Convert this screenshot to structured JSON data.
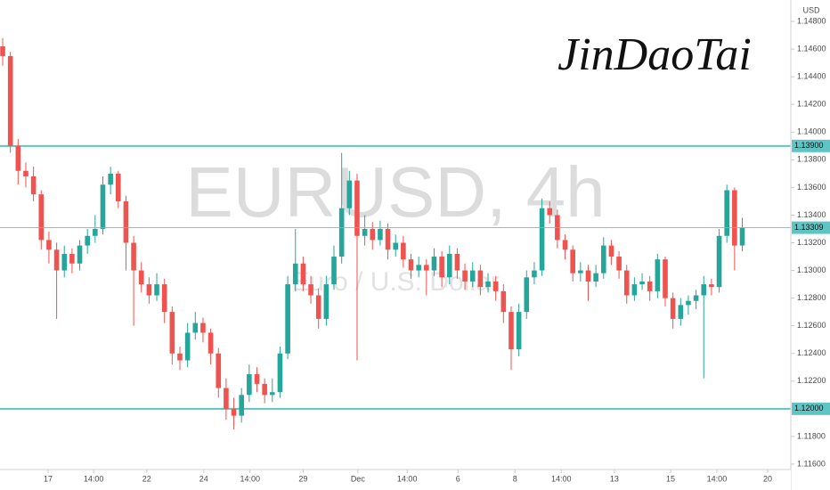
{
  "chart_data": {
    "type": "candlestick",
    "title": "EURUSD, 4h",
    "subtitle": "Euro / U.S. Dollar",
    "currency": "USD",
    "signature": "JinDaoTai",
    "up_color": "#26a69a",
    "down_color": "#ef5350",
    "level_color": "#5fc4c4",
    "xlim": [
      -0.35,
      102.3
    ],
    "ylim": [
      1.11561,
      1.14955
    ],
    "xticks": [
      {
        "value": 5.9,
        "label": "17"
      },
      {
        "value": 11.8,
        "label": "14:00"
      },
      {
        "value": 18.7,
        "label": "22"
      },
      {
        "value": 26.1,
        "label": "24"
      },
      {
        "value": 32.1,
        "label": "14:00"
      },
      {
        "value": 39,
        "label": "29"
      },
      {
        "value": 46.1,
        "label": "Dec"
      },
      {
        "value": 52.5,
        "label": "14:00"
      },
      {
        "value": 59.1,
        "label": "6"
      },
      {
        "value": 66.5,
        "label": "8"
      },
      {
        "value": 72.5,
        "label": "14:00"
      },
      {
        "value": 79.4,
        "label": "13"
      },
      {
        "value": 86.7,
        "label": "15"
      },
      {
        "value": 92.7,
        "label": "14:00"
      },
      {
        "value": 99.3,
        "label": "20"
      }
    ],
    "yticks": [
      {
        "value": 1.148,
        "label": "1.14800"
      },
      {
        "value": 1.146,
        "label": "1.14600"
      },
      {
        "value": 1.144,
        "label": "1.14400"
      },
      {
        "value": 1.142,
        "label": "1.14200"
      },
      {
        "value": 1.14,
        "label": "1.14000"
      },
      {
        "value": 1.138,
        "label": "1.13800"
      },
      {
        "value": 1.136,
        "label": "1.13600"
      },
      {
        "value": 1.134,
        "label": "1.13400"
      },
      {
        "value": 1.132,
        "label": "1.13200"
      },
      {
        "value": 1.13,
        "label": "1.13000"
      },
      {
        "value": 1.128,
        "label": "1.12800"
      },
      {
        "value": 1.126,
        "label": "1.12600"
      },
      {
        "value": 1.124,
        "label": "1.12400"
      },
      {
        "value": 1.122,
        "label": "1.12200"
      },
      {
        "value": 1.118,
        "label": "1.11800"
      },
      {
        "value": 1.116,
        "label": "1.11600"
      }
    ],
    "levels": [
      {
        "value": 1.139,
        "label": "1.13900"
      },
      {
        "value": 1.12,
        "label": "1.12000"
      }
    ],
    "last_price": {
      "value": 1.13309,
      "label": "1.13309"
    },
    "candles": [
      [
        1.1462,
        1.1468,
        1.1448,
        1.1455
      ],
      [
        1.1455,
        1.1458,
        1.1385,
        1.139
      ],
      [
        1.139,
        1.1395,
        1.1362,
        1.1372
      ],
      [
        1.1372,
        1.1378,
        1.136,
        1.1368
      ],
      [
        1.1368,
        1.1375,
        1.135,
        1.1355
      ],
      [
        1.1355,
        1.1358,
        1.1315,
        1.1322
      ],
      [
        1.1322,
        1.1328,
        1.1305,
        1.1315
      ],
      [
        1.1315,
        1.132,
        1.1265,
        1.13
      ],
      [
        1.13,
        1.1318,
        1.1295,
        1.1312
      ],
      [
        1.1312,
        1.1316,
        1.1298,
        1.1305
      ],
      [
        1.1305,
        1.1322,
        1.13,
        1.1318
      ],
      [
        1.1318,
        1.133,
        1.1312,
        1.1325
      ],
      [
        1.1325,
        1.134,
        1.132,
        1.133
      ],
      [
        1.133,
        1.1368,
        1.1326,
        1.1362
      ],
      [
        1.1362,
        1.1375,
        1.1355,
        1.137
      ],
      [
        1.137,
        1.1372,
        1.1345,
        1.135
      ],
      [
        1.135,
        1.1354,
        1.13,
        1.132
      ],
      [
        1.132,
        1.1325,
        1.126,
        1.13
      ],
      [
        1.13,
        1.1306,
        1.1284,
        1.129
      ],
      [
        1.129,
        1.1295,
        1.1276,
        1.1282
      ],
      [
        1.1282,
        1.1298,
        1.1278,
        1.129
      ],
      [
        1.129,
        1.1294,
        1.1262,
        1.127
      ],
      [
        1.127,
        1.1274,
        1.1232,
        1.124
      ],
      [
        1.124,
        1.1245,
        1.1228,
        1.1235
      ],
      [
        1.1235,
        1.1262,
        1.123,
        1.1255
      ],
      [
        1.1255,
        1.127,
        1.125,
        1.1262
      ],
      [
        1.1262,
        1.1266,
        1.1248,
        1.1255
      ],
      [
        1.1255,
        1.1258,
        1.1232,
        1.124
      ],
      [
        1.124,
        1.1244,
        1.1208,
        1.1215
      ],
      [
        1.1215,
        1.1222,
        1.1192,
        1.12
      ],
      [
        1.12,
        1.1208,
        1.1185,
        1.1195
      ],
      [
        1.1195,
        1.1215,
        1.119,
        1.121
      ],
      [
        1.121,
        1.1232,
        1.1205,
        1.1225
      ],
      [
        1.1225,
        1.123,
        1.1212,
        1.1218
      ],
      [
        1.1218,
        1.1222,
        1.1204,
        1.121
      ],
      [
        1.121,
        1.1222,
        1.1205,
        1.1212
      ],
      [
        1.1212,
        1.1245,
        1.1208,
        1.124
      ],
      [
        1.124,
        1.1296,
        1.1236,
        1.129
      ],
      [
        1.129,
        1.133,
        1.1285,
        1.1305
      ],
      [
        1.1305,
        1.131,
        1.1285,
        1.129
      ],
      [
        1.129,
        1.1296,
        1.1276,
        1.1282
      ],
      [
        1.1282,
        1.1287,
        1.1258,
        1.1265
      ],
      [
        1.1265,
        1.1296,
        1.126,
        1.129
      ],
      [
        1.129,
        1.1318,
        1.1286,
        1.131
      ],
      [
        1.131,
        1.1385,
        1.1305,
        1.1345
      ],
      [
        1.1345,
        1.1372,
        1.134,
        1.1365
      ],
      [
        1.1365,
        1.137,
        1.1235,
        1.1325
      ],
      [
        1.1325,
        1.134,
        1.1318,
        1.133
      ],
      [
        1.133,
        1.1335,
        1.1315,
        1.1322
      ],
      [
        1.1322,
        1.1336,
        1.1318,
        1.133
      ],
      [
        1.133,
        1.1334,
        1.1308,
        1.1315
      ],
      [
        1.1315,
        1.1326,
        1.131,
        1.132
      ],
      [
        1.132,
        1.1325,
        1.1302,
        1.1308
      ],
      [
        1.1308,
        1.1312,
        1.1294,
        1.13
      ],
      [
        1.13,
        1.131,
        1.1295,
        1.1304
      ],
      [
        1.1304,
        1.1308,
        1.1282,
        1.13
      ],
      [
        1.13,
        1.1316,
        1.1296,
        1.131
      ],
      [
        1.131,
        1.1314,
        1.1288,
        1.1295
      ],
      [
        1.1295,
        1.1318,
        1.129,
        1.1312
      ],
      [
        1.1312,
        1.1316,
        1.1294,
        1.13
      ],
      [
        1.13,
        1.1305,
        1.1286,
        1.1292
      ],
      [
        1.1292,
        1.1306,
        1.1288,
        1.13
      ],
      [
        1.13,
        1.1304,
        1.1282,
        1.1288
      ],
      [
        1.1288,
        1.1298,
        1.1284,
        1.1292
      ],
      [
        1.1292,
        1.1296,
        1.1278,
        1.1285
      ],
      [
        1.1285,
        1.129,
        1.1262,
        1.127
      ],
      [
        1.127,
        1.1274,
        1.1228,
        1.1243
      ],
      [
        1.1243,
        1.1276,
        1.1238,
        1.127
      ],
      [
        1.127,
        1.13,
        1.1265,
        1.1295
      ],
      [
        1.1295,
        1.1306,
        1.129,
        1.13
      ],
      [
        1.13,
        1.1352,
        1.1296,
        1.1345
      ],
      [
        1.1345,
        1.135,
        1.1334,
        1.134
      ],
      [
        1.134,
        1.1344,
        1.1316,
        1.1322
      ],
      [
        1.1322,
        1.1326,
        1.1308,
        1.1315
      ],
      [
        1.1315,
        1.1318,
        1.1292,
        1.1298
      ],
      [
        1.1298,
        1.1306,
        1.1292,
        1.13
      ],
      [
        1.13,
        1.1304,
        1.1278,
        1.1292
      ],
      [
        1.1292,
        1.1304,
        1.1288,
        1.1298
      ],
      [
        1.1298,
        1.1324,
        1.1294,
        1.1318
      ],
      [
        1.1318,
        1.1322,
        1.1304,
        1.131
      ],
      [
        1.131,
        1.1314,
        1.1294,
        1.13
      ],
      [
        1.13,
        1.1304,
        1.1276,
        1.1282
      ],
      [
        1.1282,
        1.1295,
        1.1278,
        1.129
      ],
      [
        1.129,
        1.1298,
        1.1286,
        1.1292
      ],
      [
        1.1292,
        1.1296,
        1.1278,
        1.1285
      ],
      [
        1.1285,
        1.1312,
        1.128,
        1.1308
      ],
      [
        1.1308,
        1.131,
        1.1274,
        1.128
      ],
      [
        1.128,
        1.1284,
        1.1258,
        1.1265
      ],
      [
        1.1265,
        1.128,
        1.126,
        1.1275
      ],
      [
        1.1275,
        1.1282,
        1.1268,
        1.1278
      ],
      [
        1.1278,
        1.1286,
        1.1272,
        1.1282
      ],
      [
        1.1282,
        1.1296,
        1.1222,
        1.129
      ],
      [
        1.129,
        1.1294,
        1.1282,
        1.1288
      ],
      [
        1.1288,
        1.133,
        1.1284,
        1.1325
      ],
      [
        1.1325,
        1.1362,
        1.132,
        1.1358
      ],
      [
        1.1358,
        1.136,
        1.13,
        1.1318
      ],
      [
        1.1318,
        1.1338,
        1.1314,
        1.1331
      ]
    ]
  }
}
